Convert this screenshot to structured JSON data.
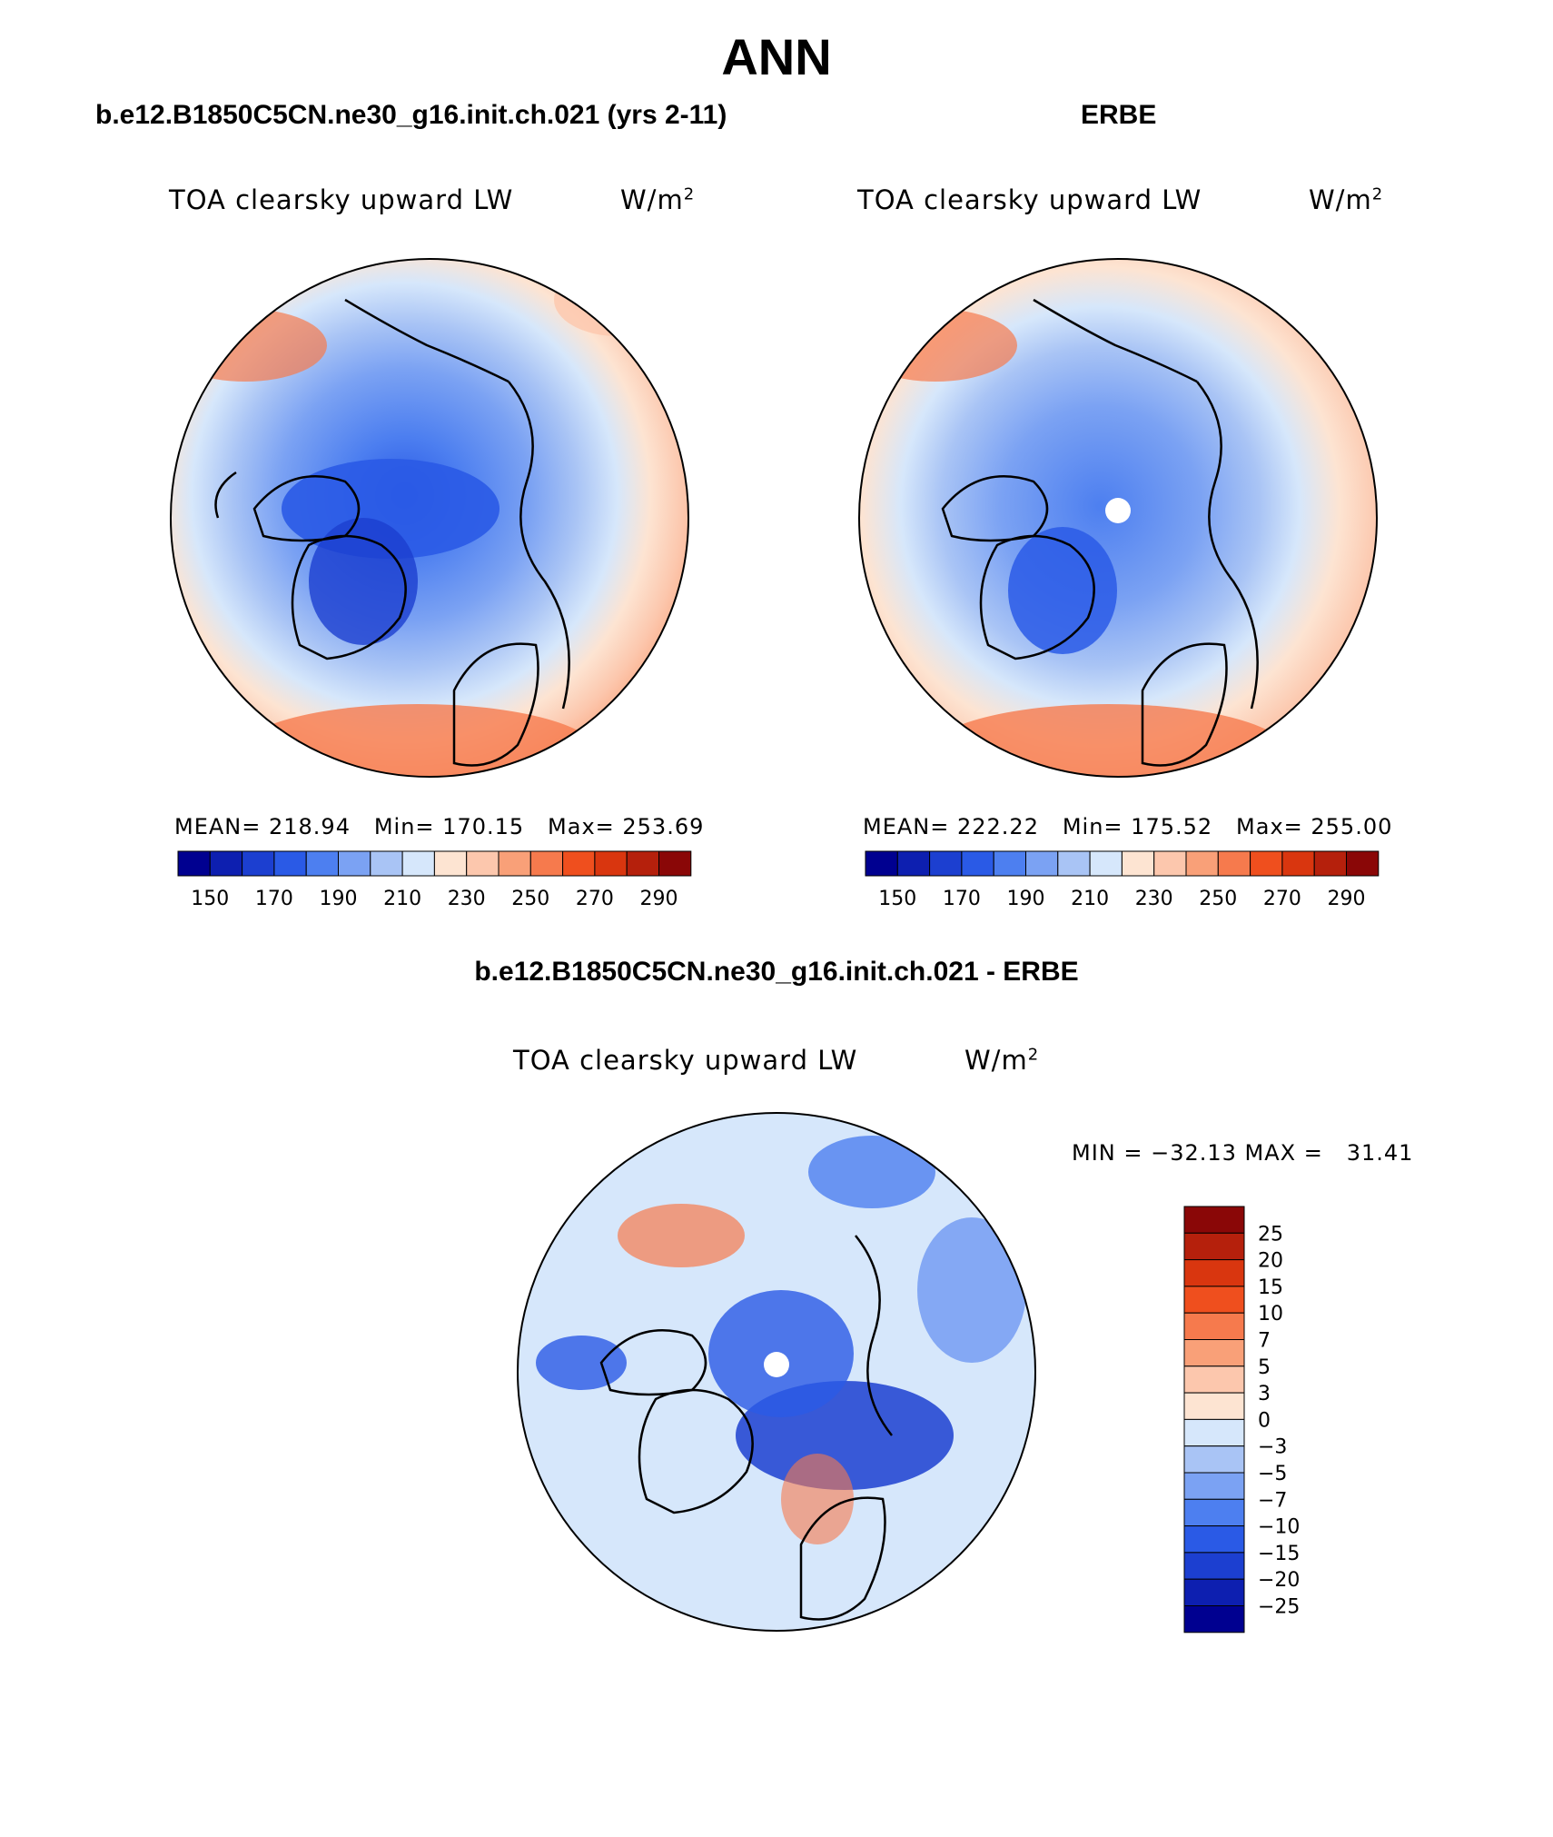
{
  "main_title": "ANN",
  "left_panel": {
    "case_title": "b.e12.B1850C5CN.ne30_g16.init.ch.021 (yrs 2-11)",
    "var_title": "TOA clearsky upward LW",
    "units": "W/m",
    "units_sup": "2",
    "stats": "MEAN= 218.94   Min= 170.15   Max= 253.69"
  },
  "right_panel": {
    "case_title": "ERBE",
    "var_title": "TOA clearsky upward LW",
    "units": "W/m",
    "units_sup": "2",
    "stats": "MEAN= 222.22   Min= 175.52   Max= 255.00"
  },
  "diff_panel": {
    "case_title": "b.e12.B1850C5CN.ne30_g16.init.ch.021 - ERBE",
    "var_title": "TOA clearsky upward LW",
    "units": "W/m",
    "units_sup": "2",
    "stats": "MIN = −32.13 MAX =   31.41"
  },
  "abs_colorbar": {
    "colors": [
      "#000090",
      "#0d1fb0",
      "#1c3fd0",
      "#2a5ae6",
      "#4d7ff0",
      "#7ba2f3",
      "#a9c4f5",
      "#d6e7fb",
      "#fde4d2",
      "#fcc7ad",
      "#f9a078",
      "#f67a4d",
      "#ef4f1e",
      "#d9360f",
      "#b5200c",
      "#8a0707"
    ],
    "labels": [
      "150",
      "170",
      "190",
      "210",
      "230",
      "250",
      "270",
      "290"
    ]
  },
  "diff_colorbar": {
    "colors": [
      "#8a0707",
      "#b5200c",
      "#d9360f",
      "#ef4f1e",
      "#f67a4d",
      "#f9a078",
      "#fcc7ad",
      "#fde4d2",
      "#d6e7fb",
      "#a9c4f5",
      "#7ba2f3",
      "#4d7ff0",
      "#2a5ae6",
      "#1c3fd0",
      "#0d1fb0",
      "#000090"
    ],
    "labels": [
      "25",
      "20",
      "15",
      "10",
      "7",
      "5",
      "3",
      "0",
      "−3",
      "−5",
      "−7",
      "−10",
      "−15",
      "−20",
      "−25"
    ]
  },
  "chart_data": [
    {
      "type": "heatmap",
      "projection": "north polar stereographic",
      "title": "b.e12.B1850C5CN.ne30_g16.init.ch.021 (yrs 2-11)",
      "variable": "TOA clearsky upward LW",
      "units": "W/m2",
      "mean": 218.94,
      "min": 170.15,
      "max": 253.69,
      "levels": [
        150,
        160,
        170,
        180,
        190,
        200,
        210,
        220,
        230,
        240,
        250,
        260,
        270,
        280,
        290
      ]
    },
    {
      "type": "heatmap",
      "projection": "north polar stereographic",
      "title": "ERBE",
      "variable": "TOA clearsky upward LW",
      "units": "W/m2",
      "mean": 222.22,
      "min": 175.52,
      "max": 255.0,
      "levels": [
        150,
        160,
        170,
        180,
        190,
        200,
        210,
        220,
        230,
        240,
        250,
        260,
        270,
        280,
        290
      ]
    },
    {
      "type": "heatmap",
      "projection": "north polar stereographic",
      "title": "b.e12.B1850C5CN.ne30_g16.init.ch.021 - ERBE",
      "variable": "TOA clearsky upward LW",
      "units": "W/m2",
      "min": -32.13,
      "max": 31.41,
      "levels": [
        -25,
        -20,
        -15,
        -10,
        -7,
        -5,
        -3,
        0,
        3,
        5,
        7,
        10,
        15,
        20,
        25
      ]
    }
  ]
}
